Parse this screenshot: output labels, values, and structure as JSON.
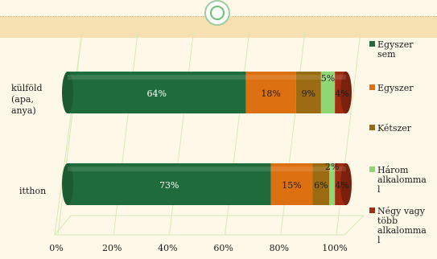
{
  "chart_data": {
    "type": "bar",
    "orientation": "horizontal",
    "stacked": "percent",
    "title": "",
    "xlabel": "",
    "ylabel": "",
    "xlim": [
      0,
      100
    ],
    "x_ticks": [
      "0%",
      "20%",
      "40%",
      "60%",
      "80%",
      "100%"
    ],
    "categories": [
      "külföld (apa, anya)",
      "itthon"
    ],
    "category_lines": [
      [
        "külföld",
        "(apa,",
        "anya)"
      ],
      [
        "itthon"
      ]
    ],
    "series": [
      {
        "name": "Egyszer sem",
        "legend_lines": [
          "Egyszer",
          "sem"
        ],
        "color": "#1f6b3b",
        "values": [
          64,
          73
        ],
        "labels": [
          "64%",
          "73%"
        ]
      },
      {
        "name": "Egyszer",
        "legend_lines": [
          "Egyszer"
        ],
        "color": "#dd7010",
        "values": [
          18,
          15
        ],
        "labels": [
          "18%",
          "15%"
        ]
      },
      {
        "name": "Kétszer",
        "legend_lines": [
          "Kétszer"
        ],
        "color": "#9a6b10",
        "values": [
          9,
          6
        ],
        "labels": [
          "9%",
          "6%"
        ]
      },
      {
        "name": "Három alkalommal",
        "legend_lines": [
          "Három",
          "alkalomma",
          "l"
        ],
        "color": "#8ed873",
        "values": [
          5,
          2
        ],
        "labels": [
          "5%",
          "2%"
        ]
      },
      {
        "name": "Négy vagy több alkalommal",
        "legend_lines": [
          "Négy vagy",
          "több",
          "alkalomma",
          "l"
        ],
        "color": "#a12c10",
        "values": [
          4,
          4
        ],
        "labels": [
          "4%",
          "4%"
        ]
      }
    ],
    "grid": true,
    "legend_position": "right"
  }
}
